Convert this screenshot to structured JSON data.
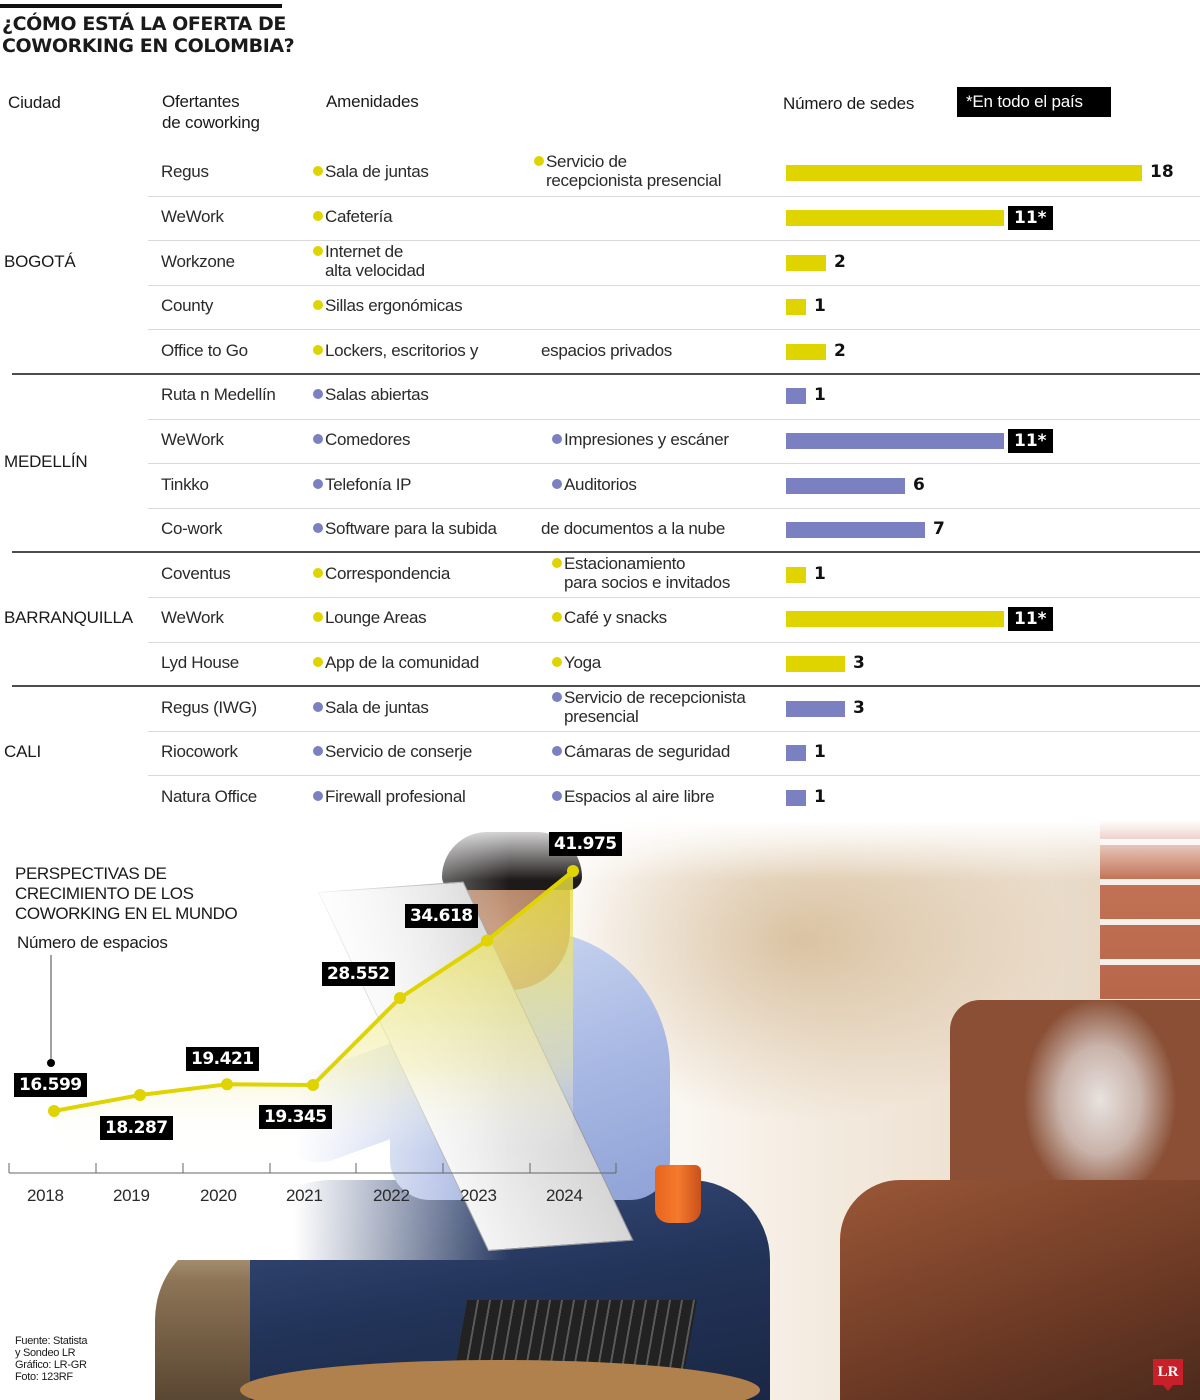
{
  "header": {
    "title_line1": "¿CÓMO ESTÁ LA OFERTA DE",
    "title_line2": "COWORKING EN COLOMBIA?"
  },
  "columns": {
    "city": "Ciudad",
    "providers_line1": "Ofertantes",
    "providers_line2": "de coworking",
    "amenities": "Amenidades",
    "sites": "Número de sedes",
    "note": "*En todo el país"
  },
  "colors": {
    "yellow": "#dfd400",
    "purple": "#7a80c0",
    "label_bg": "#000000"
  },
  "cities": [
    {
      "name": "BOGOTÁ",
      "color": "yellow",
      "providers": [
        {
          "name": "Regus",
          "amenity1": "Sala de juntas",
          "amenity2": "Servicio de\nrecepcionista presencial",
          "sites": 18,
          "label": "18",
          "national": false
        },
        {
          "name": "WeWork",
          "amenity1": "Cafetería",
          "amenity2": "",
          "sites": 11,
          "label": "11*",
          "national": true
        },
        {
          "name": "Workzone",
          "amenity1": "Internet de\nalta velocidad",
          "amenity2": "",
          "sites": 2,
          "label": "2",
          "national": false
        },
        {
          "name": "County",
          "amenity1": "Sillas ergonómicas",
          "amenity2": "",
          "sites": 1,
          "label": "1",
          "national": false
        },
        {
          "name": "Office to Go",
          "amenity1": "Lockers, escritorios y",
          "amenity2": "espacios privados",
          "sites": 2,
          "label": "2",
          "national": false
        }
      ]
    },
    {
      "name": "MEDELLÍN",
      "color": "purple",
      "providers": [
        {
          "name": "Ruta n Medellín",
          "amenity1": "Salas abiertas",
          "amenity2": "",
          "sites": 1,
          "label": "1",
          "national": false
        },
        {
          "name": "WeWork",
          "amenity1": "Comedores",
          "amenity2": "Impresiones y escáner",
          "sites": 11,
          "label": "11*",
          "national": true
        },
        {
          "name": "Tinkko",
          "amenity1": "Telefonía IP",
          "amenity2": "Auditorios",
          "sites": 6,
          "label": "6",
          "national": false
        },
        {
          "name": "Co-work",
          "amenity1": "Software para la subida",
          "amenity2": "de documentos a la nube",
          "sites": 7,
          "label": "7",
          "national": false
        }
      ]
    },
    {
      "name": "BARRANQUILLA",
      "color": "yellow",
      "providers": [
        {
          "name": "Coventus",
          "amenity1": "Correspondencia",
          "amenity2": "Estacionamiento\npara socios e invitados",
          "sites": 1,
          "label": "1",
          "national": false
        },
        {
          "name": "WeWork",
          "amenity1": "Lounge Areas",
          "amenity2": "Café y snacks",
          "sites": 11,
          "label": "11*",
          "national": true
        },
        {
          "name": "Lyd House",
          "amenity1": "App de la comunidad",
          "amenity2": "Yoga",
          "sites": 3,
          "label": "3",
          "national": false
        }
      ]
    },
    {
      "name": "CALI",
      "color": "purple",
      "providers": [
        {
          "name": "Regus (IWG)",
          "amenity1": "Sala de juntas",
          "amenity2": "Servicio de recepcionista\npresencial",
          "sites": 3,
          "label": "3",
          "national": false
        },
        {
          "name": "Riocowork",
          "amenity1": "Servicio de conserje",
          "amenity2": "Cámaras de seguridad",
          "sites": 1,
          "label": "1",
          "national": false
        },
        {
          "name": "Natura Office",
          "amenity1": "Firewall profesional",
          "amenity2": "Espacios al aire libre",
          "sites": 1,
          "label": "1",
          "national": false
        }
      ]
    }
  ],
  "growth": {
    "title_line1": "PERSPECTIVAS DE",
    "title_line2": "CRECIMIENTO DE LOS",
    "title_line3": "COWORKING EN EL MUNDO",
    "subtitle": "Número de espacios"
  },
  "chart_data": [
    {
      "type": "bar",
      "orientation": "horizontal",
      "title": "¿Cómo está la oferta de coworking en Colombia?",
      "xlabel": "Número de sedes",
      "note": "*En todo el país",
      "categories": [
        "Bogotá - Regus",
        "Bogotá - WeWork",
        "Bogotá - Workzone",
        "Bogotá - County",
        "Bogotá - Office to Go",
        "Medellín - Ruta n Medellín",
        "Medellín - WeWork",
        "Medellín - Tinkko",
        "Medellín - Co-work",
        "Barranquilla - Coventus",
        "Barranquilla - WeWork",
        "Barranquilla - Lyd House",
        "Cali - Regus (IWG)",
        "Cali - Riocowork",
        "Cali - Natura Office"
      ],
      "values": [
        18,
        11,
        2,
        1,
        2,
        1,
        11,
        6,
        7,
        1,
        11,
        3,
        3,
        1,
        1
      ],
      "xlim": [
        0,
        18
      ]
    },
    {
      "type": "area",
      "title": "Perspectivas de crecimiento de los coworking en el mundo",
      "ylabel": "Número de espacios",
      "x": [
        "2018",
        "2019",
        "2020",
        "2021",
        "2022",
        "2023",
        "2024"
      ],
      "values": [
        16599,
        18287,
        19421,
        19345,
        28552,
        34618,
        41975
      ],
      "labels": [
        "16.599",
        "18.287",
        "19.421",
        "19.345",
        "28.552",
        "34.618",
        "41.975"
      ],
      "grid": false,
      "legend": null
    }
  ],
  "footer": {
    "source_line1": "Fuente: Statista",
    "source_line2": "y Sondeo LR",
    "graphic": "Gráfico: LR-GR",
    "photo": "Foto: 123RF",
    "logo": "LR"
  }
}
